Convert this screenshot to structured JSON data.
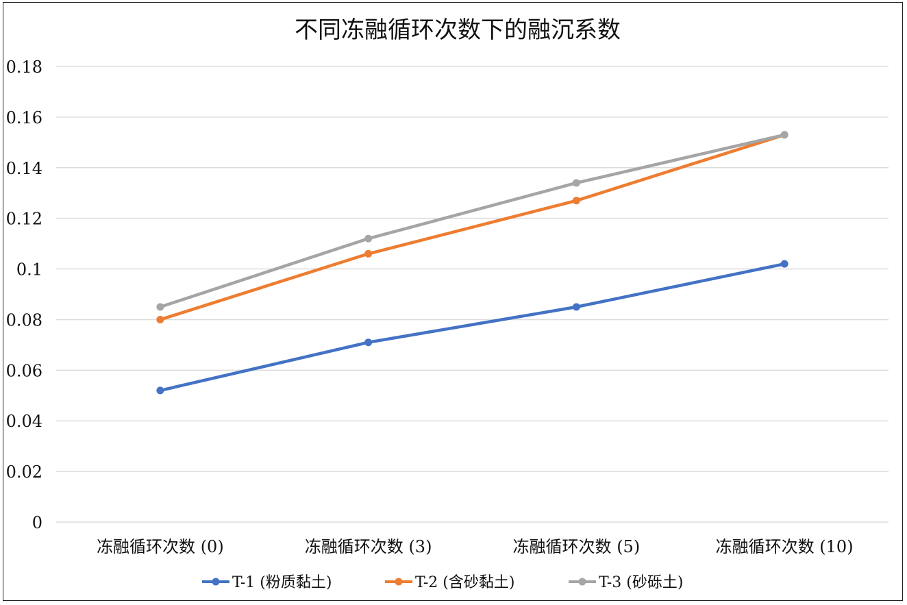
{
  "chart_data": {
    "type": "line",
    "title": "不同冻融循环次数下的融沉系数",
    "xlabel": "",
    "ylabel": "",
    "categories": [
      "冻融循环次数 (0)",
      "冻融循环次数 (3)",
      "冻融循环次数 (5)",
      "冻融循环次数 (10)"
    ],
    "ylim": [
      0,
      0.18
    ],
    "yticks": [
      "0",
      "0.02",
      "0.04",
      "0.06",
      "0.08",
      "0.1",
      "0.12",
      "0.14",
      "0.16",
      "0.18"
    ],
    "grid": true,
    "legend_position": "bottom",
    "series": [
      {
        "name": "T-1 (粉质黏土)",
        "color": "#4472c4",
        "values": [
          0.052,
          0.071,
          0.085,
          0.102
        ]
      },
      {
        "name": "T-2 (含砂黏土)",
        "color": "#ed7d31",
        "values": [
          0.08,
          0.106,
          0.127,
          0.153
        ]
      },
      {
        "name": "T-3 (砂砾土)",
        "color": "#a5a5a5",
        "values": [
          0.085,
          0.112,
          0.134,
          0.153
        ]
      }
    ]
  }
}
